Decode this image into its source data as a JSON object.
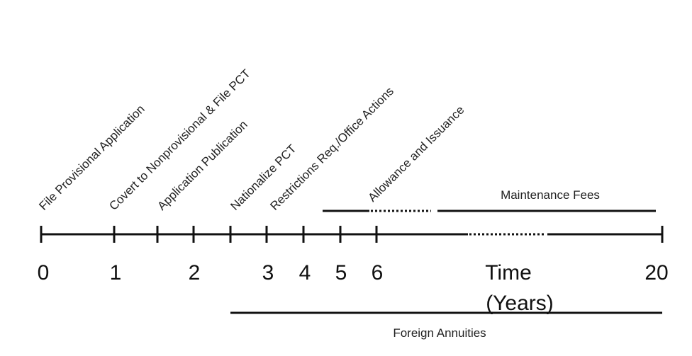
{
  "milestones": [
    "File Provisional Application",
    "Covert to Nonprovisional & File PCT",
    "Application Publication",
    "Nationalize PCT",
    "Restrictions Req./Office Actions",
    "Allowance and Issuance"
  ],
  "ticks": [
    "0",
    "1",
    "2",
    "3",
    "4",
    "5",
    "6",
    "20"
  ],
  "axis_label_line1": "Time",
  "axis_label_line2": "(Years)",
  "maintenance_label": "Maintenance Fees",
  "foreign_label": "Foreign Annuities"
}
